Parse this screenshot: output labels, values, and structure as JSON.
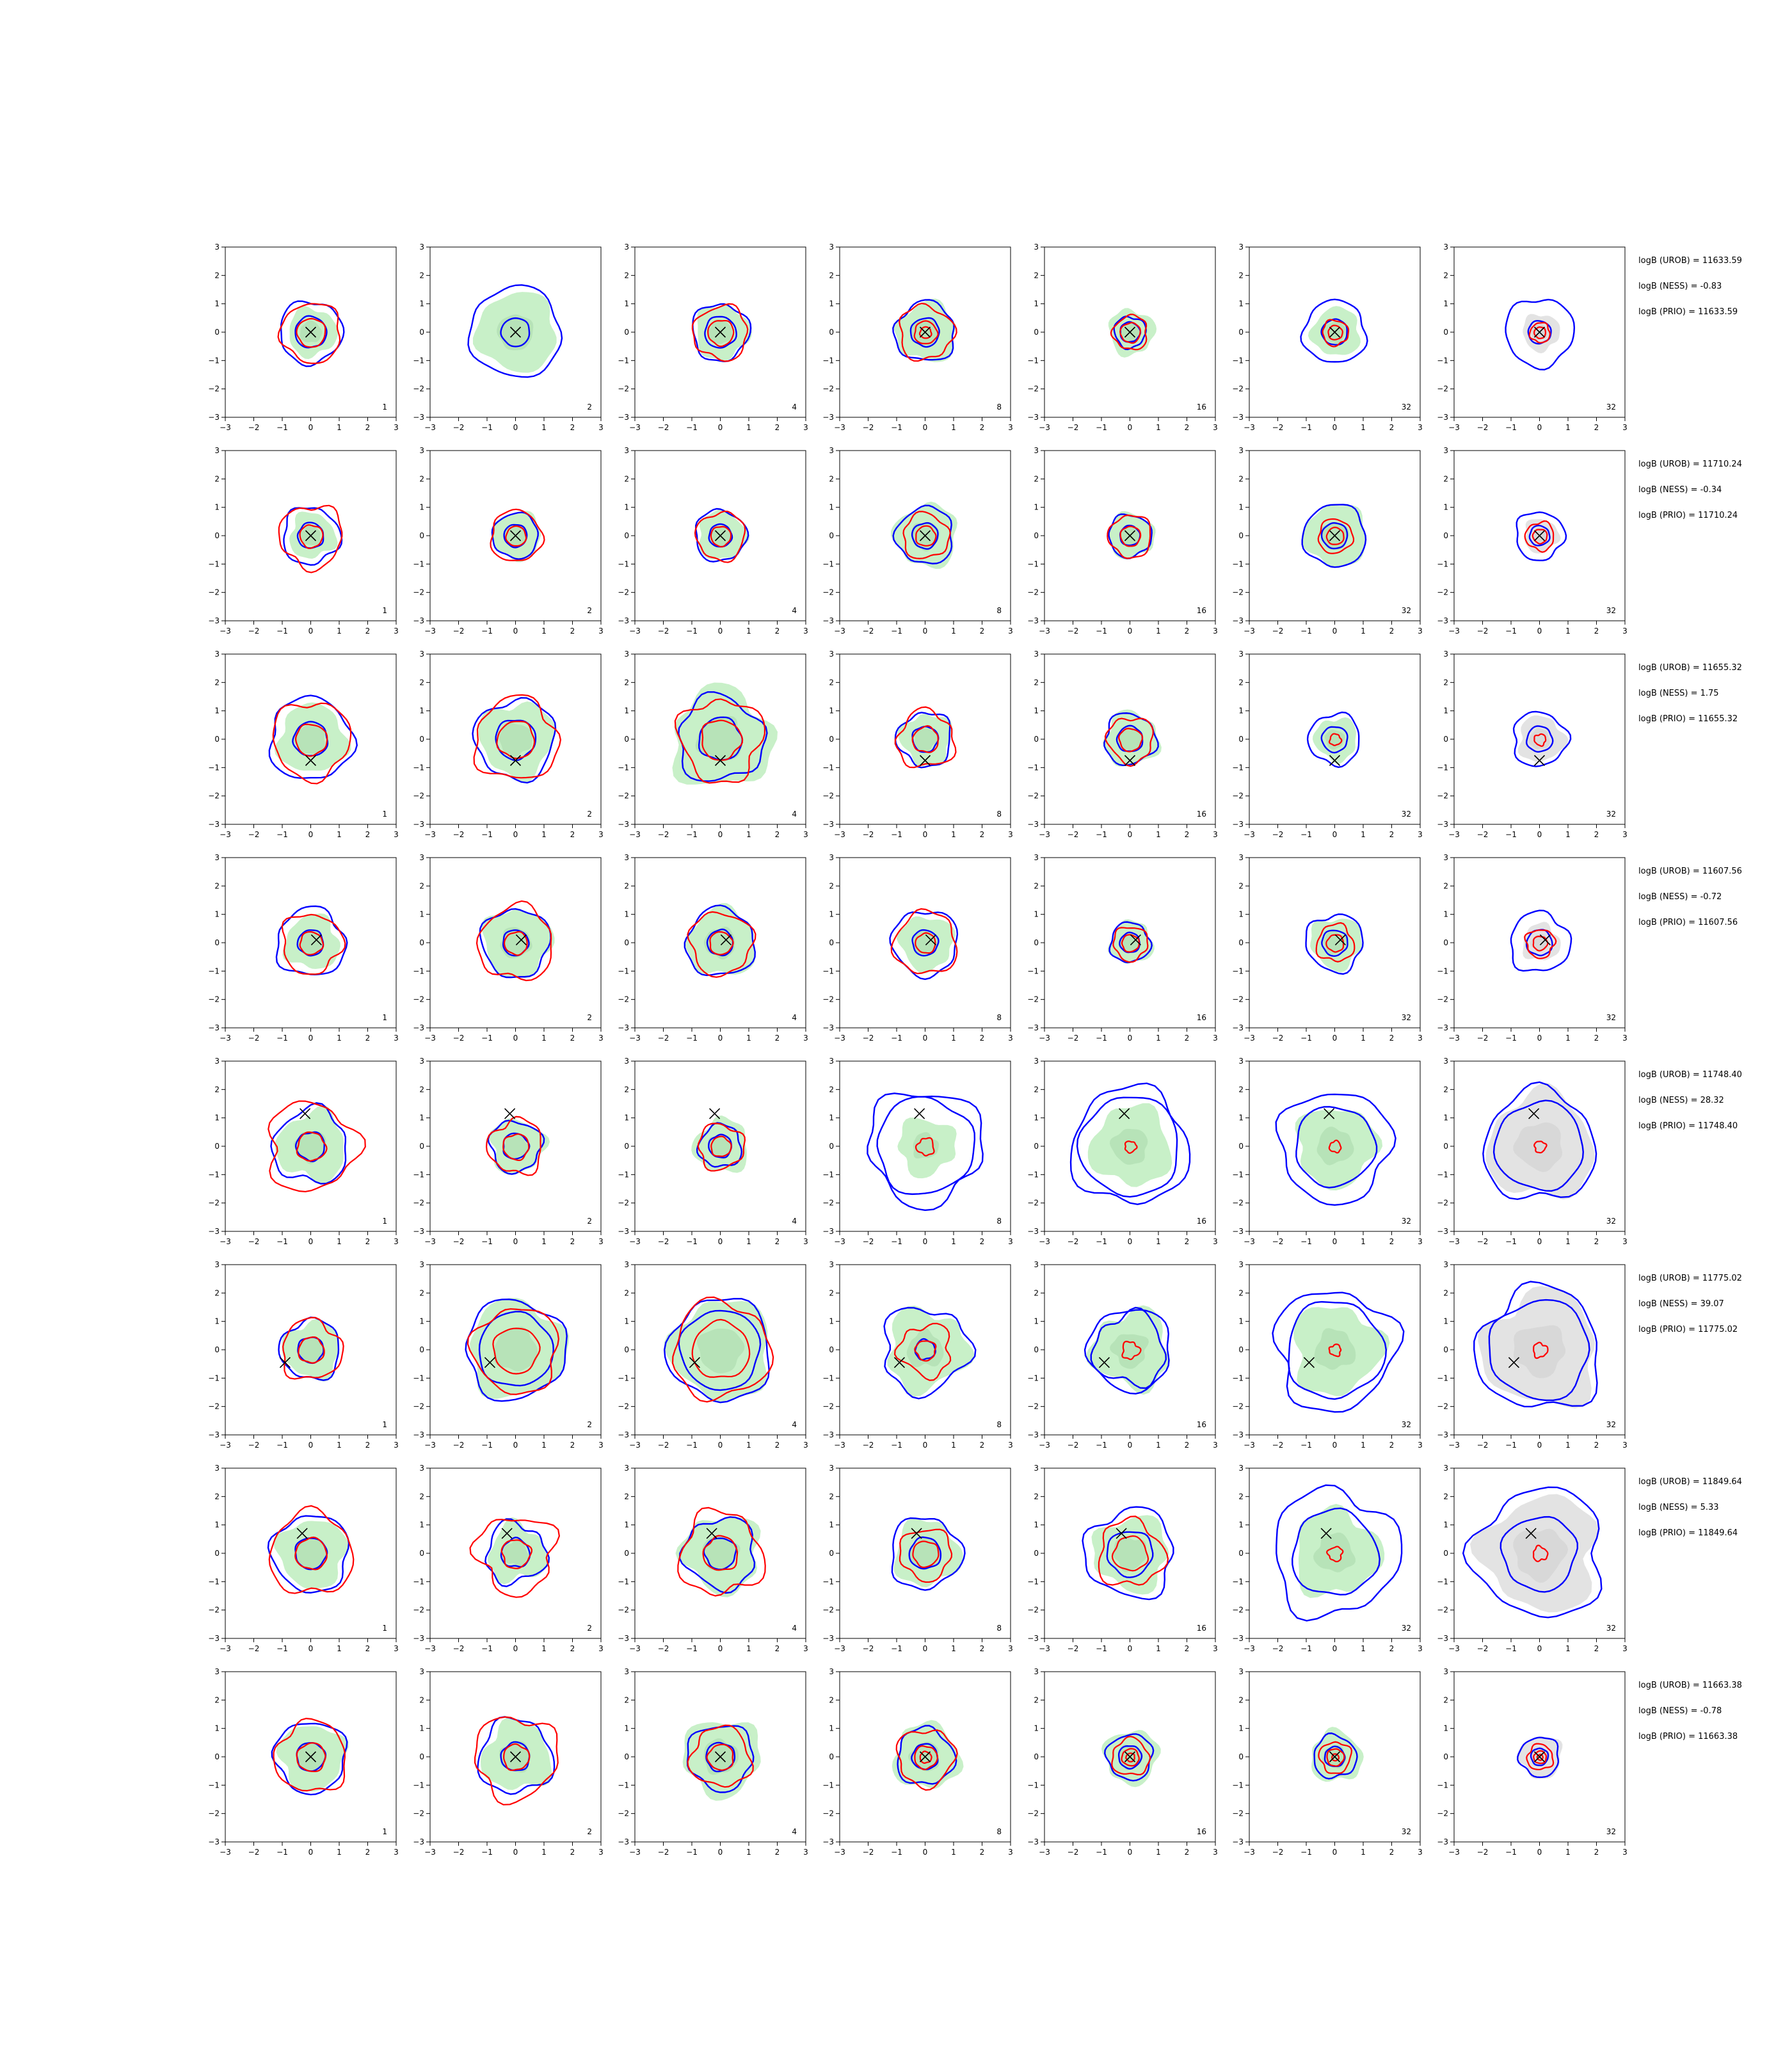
{
  "chart_data": {
    "type": "contour",
    "layout": "8 rows x 7 columns of contour panels",
    "xlim": [
      -3,
      3
    ],
    "ylim": [
      -3,
      3
    ],
    "xticks": [
      "−3",
      "−2",
      "−1",
      "0",
      "1",
      "2",
      "3"
    ],
    "yticks": [
      "3",
      "2",
      "1",
      "0",
      "−1",
      "−2",
      "−3"
    ],
    "panel_labels": [
      "1",
      "2",
      "4",
      "8",
      "16",
      "32",
      "32"
    ],
    "last_panel_fill": "gray",
    "colors": {
      "fill_green": "#c8f0c8",
      "fill_green_dark": "#a9d8ac",
      "fill_gray": "#e3e3e3",
      "fill_gray_dark": "#cfcfcf",
      "contour_blue": "#0000ff",
      "contour_red": "#ff0000",
      "marker": "#000000"
    },
    "rows": [
      {
        "marker": [
          0,
          0
        ],
        "stats": [
          "logB (UROB) = 11633.59",
          "logB (NESS) = -0.83",
          "logB (PRIO) = 11633.59"
        ],
        "blue_radii": [
          [
            1.1,
            0.55
          ],
          [
            1.6,
            0.5
          ],
          [
            1.0,
            0.55
          ],
          [
            1.05,
            0.5
          ],
          [
            0.55,
            0.35
          ],
          [
            1.1,
            0.45
          ],
          [
            1.2,
            0.4
          ]
        ],
        "red_radii": [
          [
            1.05,
            0.5
          ],
          [
            0,
            0
          ],
          [
            0.95,
            0.45
          ],
          [
            0.95,
            0.4,
            0.2
          ],
          [
            0.6,
            0.35
          ],
          [
            0.45,
            0.25
          ],
          [
            0.35,
            0.2
          ]
        ],
        "fill_radii": [
          0.85,
          1.4,
          0.95,
          1.05,
          0.8,
          0.85,
          0.65
        ],
        "wobble": [
          0.06,
          0.05,
          0.07,
          0.08,
          0.07,
          0.06,
          0.06
        ]
      },
      {
        "marker": [
          0,
          0
        ],
        "stats": [
          "logB (UROB) = 11710.24",
          "logB (NESS) = -0.34",
          "logB (PRIO) = 11710.24"
        ],
        "blue_radii": [
          [
            1.0,
            0.45
          ],
          [
            0.8,
            0.4
          ],
          [
            0.9,
            0.4
          ],
          [
            1.0,
            0.45
          ],
          [
            0.75,
            0.35
          ],
          [
            1.1,
            0.45
          ],
          [
            0.85,
            0.35
          ]
        ],
        "red_radii": [
          [
            1.1,
            0.4
          ],
          [
            0.9,
            0.35
          ],
          [
            0.85,
            0.35
          ],
          [
            0.8,
            0.35
          ],
          [
            0.75,
            0.35
          ],
          [
            0.6,
            0.3
          ],
          [
            0.5,
            0.25
          ]
        ],
        "fill_radii": [
          0.8,
          0.85,
          0.85,
          1.1,
          0.8,
          1.1,
          0.6
        ],
        "wobble": [
          0.08,
          0.05,
          0.06,
          0.07,
          0.06,
          0.05,
          0.07
        ]
      },
      {
        "marker": [
          0,
          -0.75
        ],
        "stats": [
          "logB (UROB) = 11655.32",
          "logB (NESS) = 1.75",
          "logB (PRIO) = 11655.32"
        ],
        "blue_radii": [
          [
            1.45,
            0.6
          ],
          [
            1.4,
            0.7
          ],
          [
            1.5,
            0.75
          ],
          [
            0.95,
            0.45
          ],
          [
            0.9,
            0.45
          ],
          [
            0.9,
            0.45
          ],
          [
            0.95,
            0.45
          ]
        ],
        "red_radii": [
          [
            1.35,
            0.55
          ],
          [
            1.45,
            0.65
          ],
          [
            1.45,
            0.7
          ],
          [
            1.0,
            0.45
          ],
          [
            0.8,
            0.4
          ],
          [
            0.2
          ],
          [
            0.2
          ]
        ],
        "fill_radii": [
          1.2,
          1.3,
          1.75,
          0.9,
          0.95,
          0.75,
          0.8
        ],
        "wobble": [
          0.07,
          0.08,
          0.1,
          0.09,
          0.08,
          0.07,
          0.08
        ]
      },
      {
        "marker": [
          0.2,
          0.1
        ],
        "stats": [
          "logB (UROB) = 11607.56",
          "logB (NESS) = -0.72",
          "logB (PRIO) = 11607.56"
        ],
        "blue_radii": [
          [
            1.2,
            0.45
          ],
          [
            1.2,
            0.45
          ],
          [
            1.2,
            0.45
          ],
          [
            1.15,
            0.45
          ],
          [
            0.7,
            0.35
          ],
          [
            1.0,
            0.45
          ],
          [
            1.05,
            0.45
          ]
        ],
        "red_radii": [
          [
            1.05,
            0.4
          ],
          [
            1.3,
            0.4
          ],
          [
            1.1,
            0.4
          ],
          [
            1.1,
            0.35
          ],
          [
            0.6,
            0.3
          ],
          [
            0.65,
            0.3
          ],
          [
            0.5,
            0.25
          ]
        ],
        "fill_radii": [
          0.95,
          1.2,
          1.2,
          0.95,
          0.75,
          0.9,
          0.65
        ],
        "wobble": [
          0.08,
          0.07,
          0.07,
          0.07,
          0.07,
          0.08,
          0.08
        ]
      },
      {
        "marker": [
          -0.2,
          1.15
        ],
        "stats": [
          "logB (UROB) = 11748.40",
          "logB (NESS) = 28.32",
          "logB (PRIO) = 11748.40"
        ],
        "blue_radii": [
          [
            1.3,
            0.5
          ],
          [
            0.9,
            0.45
          ],
          [
            0.75,
            0.4
          ],
          [
            2.0,
            1.7
          ],
          [
            2.05,
            1.75
          ],
          [
            1.95,
            1.4
          ],
          [
            1.95,
            1.55
          ]
        ],
        "red_radii": [
          [
            1.55,
            0.5
          ],
          [
            0.95,
            0.45
          ],
          [
            0.8,
            0.35
          ],
          [
            0.3
          ],
          [
            0.2
          ],
          [
            0.2
          ],
          [
            0.2
          ]
        ],
        "fill_radii": [
          1.2,
          0.95,
          0.95,
          1.0,
          1.4,
          1.4,
          1.85
        ],
        "wobble": [
          0.1,
          0.09,
          0.08,
          0.1,
          0.08,
          0.08,
          0.08
        ]
      },
      {
        "marker": [
          -0.9,
          -0.45
        ],
        "stats": [
          "logB (UROB) = 11775.02",
          "logB (NESS) = 39.07",
          "logB (PRIO) = 11775.02"
        ],
        "blue_radii": [
          [
            1.05,
            0.45
          ],
          [
            1.75,
            1.3
          ],
          [
            1.8,
            1.4
          ],
          [
            1.5,
            0.35
          ],
          [
            1.25,
            1.45
          ],
          [
            2.1,
            1.7
          ],
          [
            2.15,
            1.75
          ]
        ],
        "red_radii": [
          [
            1.05,
            0.45
          ],
          [
            1.5,
            0.8
          ],
          [
            1.7,
            1.0
          ],
          [
            0.9,
            0.35
          ],
          [
            0.3
          ],
          [
            0.2
          ],
          [
            0.25
          ]
        ],
        "fill_radii": [
          1.0,
          1.7,
          1.75,
          1.4,
          1.35,
          1.55,
          2.0
        ],
        "wobble": [
          0.08,
          0.07,
          0.07,
          0.12,
          0.12,
          0.1,
          0.1
        ]
      },
      {
        "marker": [
          -0.3,
          0.7
        ],
        "stats": [
          "logB (UROB) = 11849.64",
          "logB (NESS) = 5.33",
          "logB (PRIO) = 11849.64"
        ],
        "blue_radii": [
          [
            1.35,
            0.55
          ],
          [
            1.05,
            0.5
          ],
          [
            1.25,
            0.55
          ],
          [
            1.25,
            0.55
          ],
          [
            1.55,
            0.8
          ],
          [
            2.2,
            1.5
          ],
          [
            2.25,
            1.3
          ]
        ],
        "red_radii": [
          [
            1.45,
            0.55
          ],
          [
            1.35,
            0.5
          ],
          [
            1.45,
            0.6
          ],
          [
            0.9,
            0.45
          ],
          [
            1.15,
            0.6
          ],
          [
            0.25
          ],
          [
            0.25
          ]
        ],
        "fill_radii": [
          1.2,
          1.0,
          1.35,
          1.15,
          1.3,
          1.5,
          2.0
        ],
        "wobble": [
          0.07,
          0.12,
          0.1,
          0.08,
          0.1,
          0.1,
          0.1
        ]
      },
      {
        "marker": [
          0,
          0
        ],
        "stats": [
          "logB (UROB) = 11663.38",
          "logB (NESS) = -0.78",
          "logB (PRIO) = 11663.38"
        ],
        "blue_radii": [
          [
            1.25,
            0.5
          ],
          [
            1.3,
            0.5
          ],
          [
            1.15,
            0.5
          ],
          [
            1.0,
            0.45
          ],
          [
            0.8,
            0.4
          ],
          [
            0.75,
            0.35
          ],
          [
            0.7,
            0.3
          ]
        ],
        "red_radii": [
          [
            1.25,
            0.5
          ],
          [
            1.45,
            0.45
          ],
          [
            1.05,
            0.45
          ],
          [
            1.0,
            0.4,
            0.2
          ],
          [
            0.65,
            0.3,
            0.15
          ],
          [
            0.55,
            0.3,
            0.12
          ],
          [
            0.45,
            0.22,
            0.1
          ]
        ],
        "fill_radii": [
          1.15,
          1.2,
          1.35,
          1.15,
          0.95,
          0.9,
          0.75
        ],
        "wobble": [
          0.07,
          0.09,
          0.08,
          0.08,
          0.07,
          0.07,
          0.07
        ]
      }
    ]
  }
}
